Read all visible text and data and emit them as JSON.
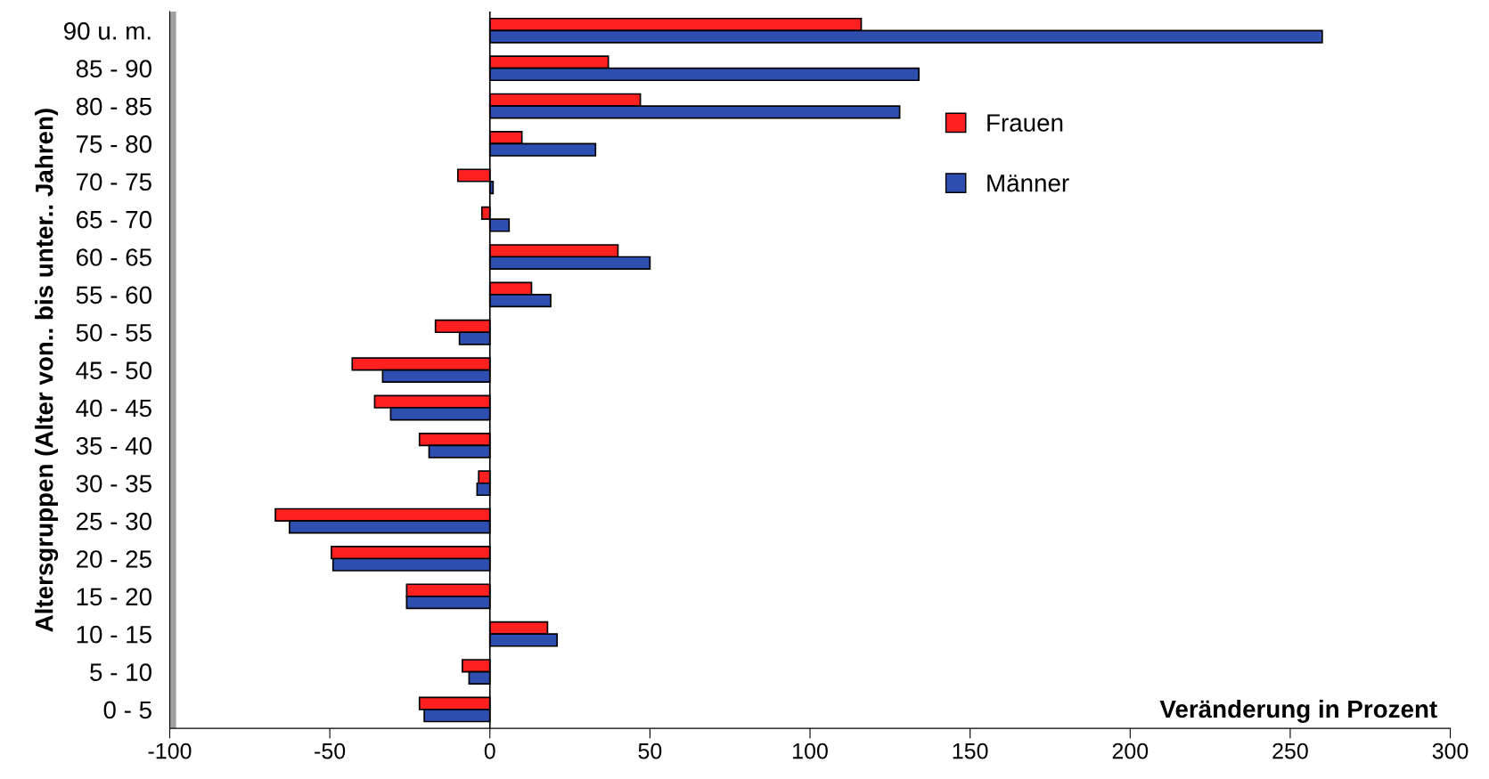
{
  "chart_data": {
    "type": "bar",
    "orientation": "horizontal",
    "ylabel": "Altersgruppen (Alter von.. bis unter.. Jahren)",
    "xlabel": "Veränderung in Prozent",
    "categories": [
      "90 u. m.",
      "85 - 90",
      "80 - 85",
      "75 - 80",
      "70 - 75",
      "65 - 70",
      "60 - 65",
      "55 - 60",
      "50 - 55",
      "45 - 50",
      "40 - 45",
      "35 - 40",
      "30 - 35",
      "25 - 30",
      "20 - 25",
      "15 - 20",
      "10 - 15",
      "5 - 10",
      "0 - 5"
    ],
    "series": [
      {
        "name": "Frauen",
        "color": "#ff2020",
        "values": [
          116,
          37,
          47,
          10,
          -10,
          -2.5,
          40,
          13,
          -17,
          -43,
          -36,
          -22,
          -3.5,
          -67,
          -49.5,
          -26,
          18,
          -8.6,
          -22
        ]
      },
      {
        "name": "Männer",
        "color": "#2f4fb0",
        "values": [
          260,
          134,
          128,
          33,
          1,
          6,
          50,
          19,
          -9.5,
          -33.5,
          -31,
          -19,
          -4,
          -62.6,
          -49,
          -26,
          21,
          -6.5,
          -20.5
        ]
      }
    ],
    "xlim": [
      -100,
      300
    ],
    "xticks": [
      -100,
      -50,
      0,
      50,
      100,
      150,
      200,
      250,
      300
    ],
    "ref_lines": [
      {
        "axis": "x",
        "value": 0,
        "color": "#000000"
      }
    ],
    "grid": false,
    "legend": "right"
  }
}
